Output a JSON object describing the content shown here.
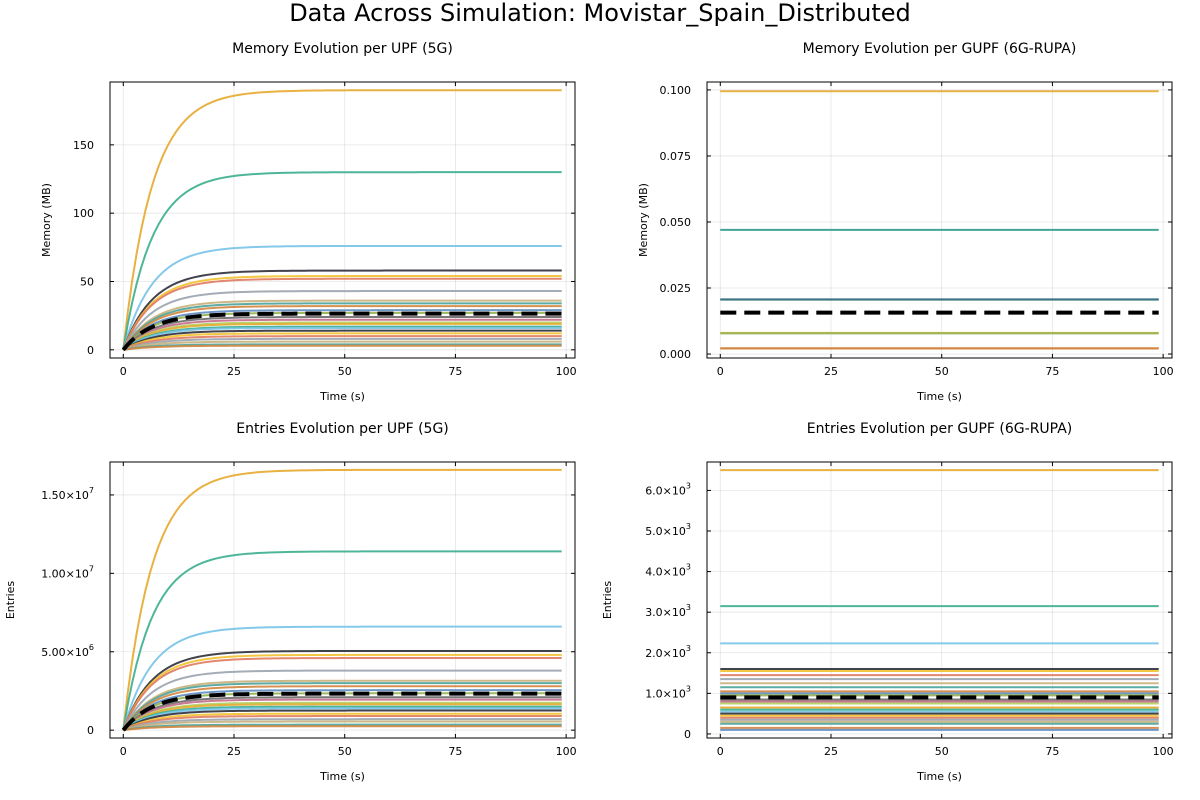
{
  "figure": {
    "title": "Data Across Simulation: Movistar_Spain_Distributed"
  },
  "colors": [
    "#e6a92e",
    "#3aae8e",
    "#77c3e8",
    "#2e2e3a",
    "#f2c12e",
    "#e07a5f",
    "#9aa3ad",
    "#c9b07a",
    "#4aa39b",
    "#d2853f",
    "#5e8cc0",
    "#8fb24a",
    "#6a6a6a",
    "#c46a8a",
    "#b0d060"
  ],
  "chart_data": [
    {
      "type": "line",
      "title": "Memory Evolution per UPF (5G)",
      "xlabel": "Time (s)",
      "ylabel": "Memory (MB)",
      "xlim": [
        -3,
        102
      ],
      "ylim": [
        -6,
        196
      ],
      "xticks": [
        0,
        25,
        50,
        75,
        100
      ],
      "xtick_labels": [
        "0",
        "25",
        "50",
        "75",
        "100"
      ],
      "yticks": [
        0,
        50,
        100,
        150
      ],
      "ytick_labels": [
        "0",
        "50",
        "100",
        "150"
      ],
      "curve": "saturating",
      "x_end": 99,
      "series_final": [
        190,
        130,
        76,
        58,
        54,
        52,
        43,
        36,
        34,
        32,
        29,
        27,
        24,
        22,
        20,
        19,
        17,
        16,
        14,
        12,
        10,
        8,
        6,
        4,
        3
      ],
      "mean": {
        "final": 26.5,
        "style": "dashed"
      }
    },
    {
      "type": "line",
      "title": "Memory Evolution per GUPF (6G-RUPA)",
      "xlabel": "Time (s)",
      "ylabel": "Memory (MB)",
      "xlim": [
        -3,
        102
      ],
      "ylim": [
        -0.0015,
        0.103
      ],
      "xticks": [
        0,
        25,
        50,
        75,
        100
      ],
      "xtick_labels": [
        "0",
        "25",
        "50",
        "75",
        "100"
      ],
      "yticks": [
        0,
        0.025,
        0.05,
        0.075,
        0.1
      ],
      "ytick_labels": [
        "0.000",
        "0.025",
        "0.050",
        "0.075",
        "0.100"
      ],
      "curve": "flat",
      "x_end": 99,
      "series_final": [
        0.0995,
        0.047,
        0.0206,
        0.0207,
        0.008,
        0.0078,
        0.0022,
        0.0021
      ],
      "series_colors": [
        "#e6a92e",
        "#2e9a8a",
        "#3a8c5a",
        "#3a6e8c",
        "#d8b85a",
        "#8fb24a",
        "#e07a30",
        "#d2853f"
      ],
      "mean": {
        "final": 0.0157,
        "style": "dashed"
      }
    },
    {
      "type": "line",
      "title": "Entries Evolution per UPF (5G)",
      "xlabel": "Time (s)",
      "ylabel": "Entries",
      "xlim": [
        -3,
        102
      ],
      "ylim": [
        -500000,
        17100000
      ],
      "xticks": [
        0,
        25,
        50,
        75,
        100
      ],
      "xtick_labels": [
        "0",
        "25",
        "50",
        "75",
        "100"
      ],
      "yticks": [
        0,
        5000000,
        10000000,
        15000000
      ],
      "ytick_mantissa": [
        "0",
        "5.00×10",
        "1.00×10",
        "1.50×10"
      ],
      "ytick_exp": [
        "",
        "6",
        "7",
        "7"
      ],
      "curve": "saturating",
      "x_end": 99,
      "series_final": [
        16600000,
        11400000,
        6600000,
        5050000,
        4800000,
        4600000,
        3800000,
        3150000,
        3000000,
        2800000,
        2550000,
        2350000,
        2100000,
        1950000,
        1750000,
        1650000,
        1500000,
        1400000,
        1250000,
        1050000,
        900000,
        700000,
        550000,
        350000,
        250000
      ],
      "mean": {
        "final": 2330000,
        "style": "dashed"
      }
    },
    {
      "type": "line",
      "title": "Entries Evolution per GUPF (6G-RUPA)",
      "xlabel": "Time (s)",
      "ylabel": "Entries",
      "xlim": [
        -3,
        102
      ],
      "ylim": [
        -100,
        6700
      ],
      "xticks": [
        0,
        25,
        50,
        75,
        100
      ],
      "xtick_labels": [
        "0",
        "25",
        "50",
        "75",
        "100"
      ],
      "yticks": [
        0,
        1000,
        2000,
        3000,
        4000,
        5000,
        6000
      ],
      "ytick_mantissa": [
        "0",
        "1.0×10",
        "2.0×10",
        "3.0×10",
        "4.0×10",
        "5.0×10",
        "6.0×10"
      ],
      "ytick_exp": [
        "",
        "3",
        "3",
        "3",
        "3",
        "3",
        "3"
      ],
      "curve": "flat",
      "x_end": 99,
      "series_final": [
        6500,
        3150,
        2230,
        1600,
        1550,
        1450,
        1350,
        1250,
        1150,
        1050,
        1000,
        950,
        850,
        800,
        750,
        650,
        600,
        550,
        500,
        450,
        400,
        350,
        300,
        250,
        150,
        100
      ],
      "mean": {
        "final": 900,
        "style": "dashed"
      }
    }
  ]
}
